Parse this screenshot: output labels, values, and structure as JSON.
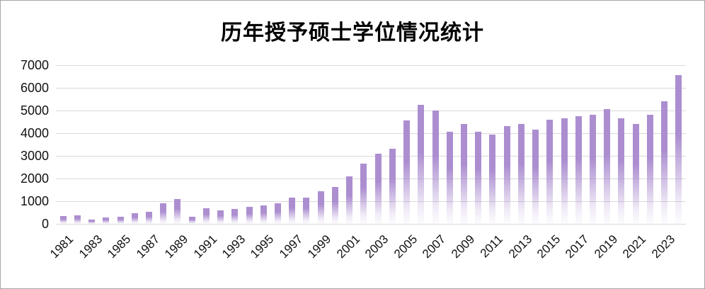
{
  "window": {
    "background": "#ffffff",
    "border_color": "#a6a6a6"
  },
  "chart_data": {
    "type": "bar",
    "title": "历年授予硕士学位情况统计",
    "xlabel": "",
    "ylabel": "",
    "ylim": [
      0,
      7000
    ],
    "ytick_step": 1000,
    "yticks": [
      0,
      1000,
      2000,
      3000,
      4000,
      5000,
      6000,
      7000
    ],
    "grid": true,
    "legend": false,
    "categories": [
      "1981",
      "1982",
      "1983",
      "1984",
      "1985",
      "1986",
      "1987",
      "1988",
      "1989",
      "1990",
      "1991",
      "1992",
      "1993",
      "1994",
      "1995",
      "1996",
      "1997",
      "1998",
      "1999",
      "2000",
      "2001",
      "2002",
      "2003",
      "2004",
      "2005",
      "2006",
      "2007",
      "2008",
      "2009",
      "2010",
      "2011",
      "2012",
      "2013",
      "2014",
      "2015",
      "2016",
      "2017",
      "2018",
      "2019",
      "2020",
      "2021",
      "2022",
      "2023",
      "2024"
    ],
    "values": [
      350,
      370,
      190,
      280,
      300,
      470,
      520,
      900,
      1080,
      320,
      700,
      590,
      660,
      750,
      820,
      920,
      1150,
      1150,
      1430,
      1620,
      2100,
      2660,
      3080,
      3310,
      4550,
      5250,
      5000,
      4050,
      4400,
      4050,
      3950,
      4300,
      4400,
      4150,
      4600,
      4650,
      4750,
      4800,
      5050,
      4650,
      4400,
      4800,
      5400,
      6550
    ],
    "x_tick_labels": [
      "1981",
      "1983",
      "1985",
      "1987",
      "1989",
      "1991",
      "1993",
      "1995",
      "1997",
      "1999",
      "2001",
      "2003",
      "2005",
      "2007",
      "2009",
      "2011",
      "2013",
      "2015",
      "2017",
      "2019",
      "2021",
      "2023"
    ],
    "x_tick_label_rotation_deg": -45,
    "bar_color_top": "#ac8ed0",
    "bar_color_bottom": "#ffffff",
    "gridline_color": "#d9d9d9",
    "text_color": "#111111"
  }
}
